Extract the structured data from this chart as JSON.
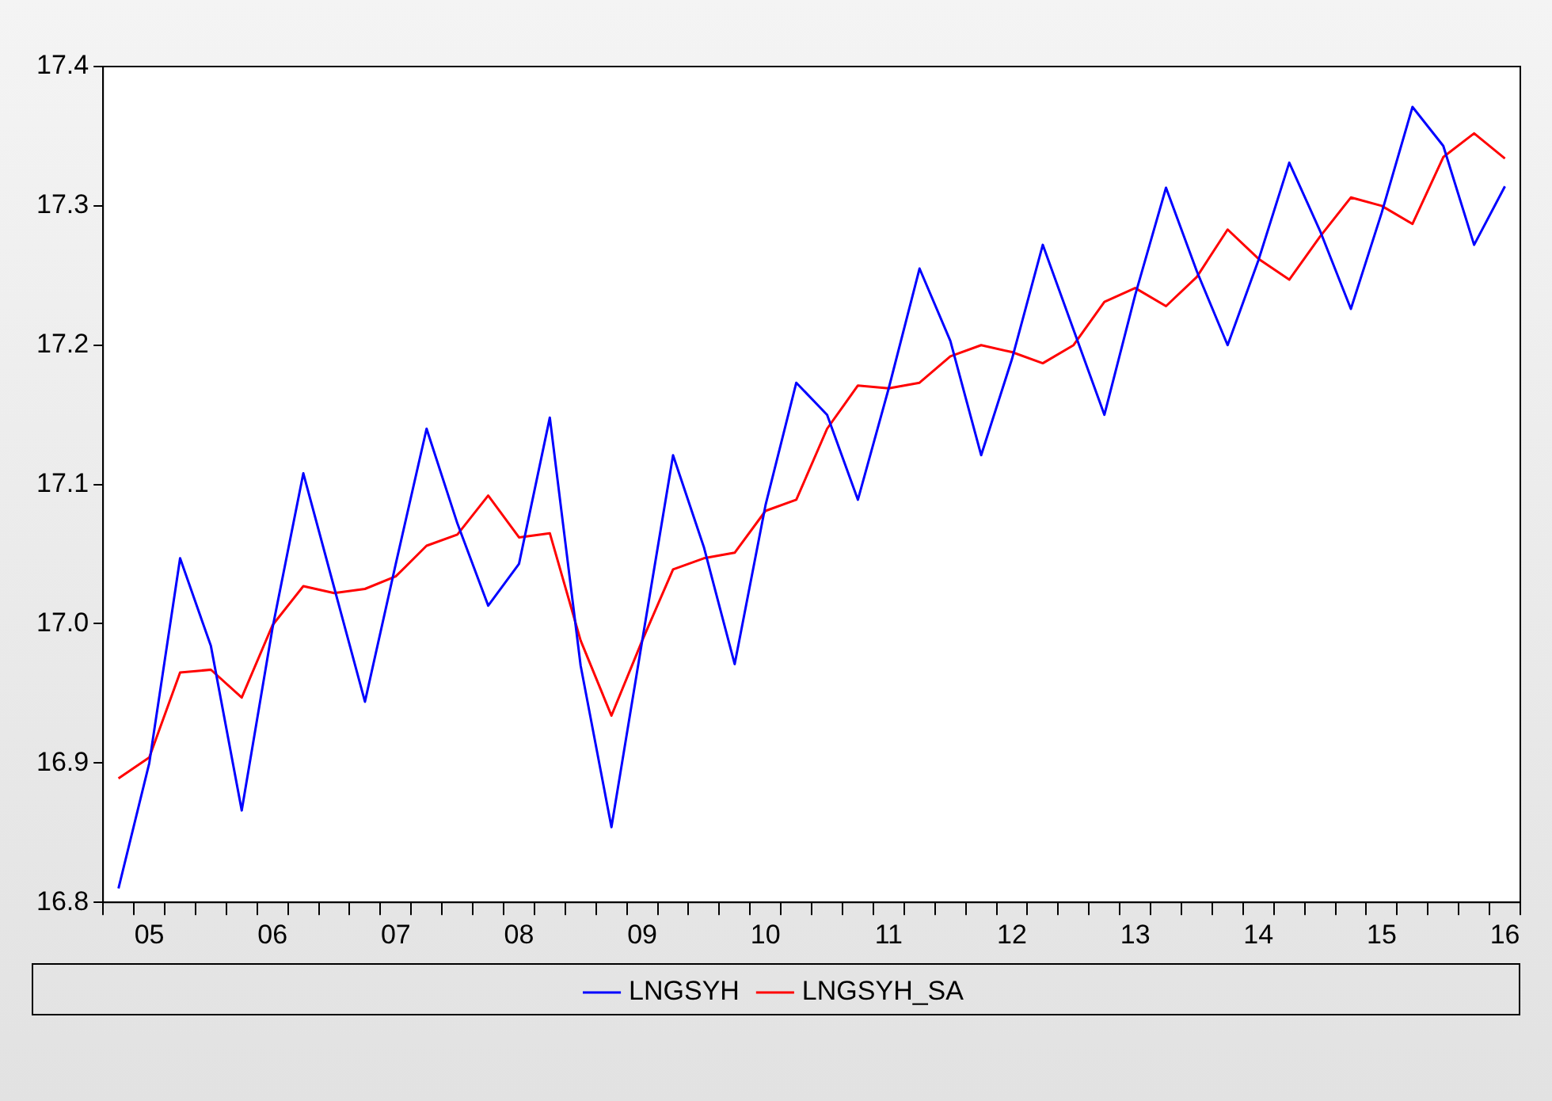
{
  "chart_data": {
    "type": "line",
    "categories": [
      null,
      "05",
      null,
      null,
      null,
      "06",
      null,
      null,
      null,
      "07",
      null,
      null,
      null,
      "08",
      null,
      null,
      null,
      "09",
      null,
      null,
      null,
      "10",
      null,
      null,
      null,
      "11",
      null,
      null,
      null,
      "12",
      null,
      null,
      null,
      "13",
      null,
      null,
      null,
      "14",
      null,
      null,
      null,
      "15",
      null,
      null,
      null,
      "16"
    ],
    "series": [
      {
        "name": "LNGSYH",
        "color": "#0000ff",
        "values": [
          16.81,
          16.9,
          17.047,
          16.984,
          16.866,
          16.997,
          17.108,
          17.026,
          16.944,
          17.043,
          17.14,
          17.072,
          17.013,
          17.043,
          17.148,
          16.97,
          16.854,
          16.988,
          17.121,
          17.055,
          16.971,
          17.085,
          17.173,
          17.15,
          17.089,
          17.169,
          17.255,
          17.203,
          17.121,
          17.19,
          17.272,
          17.211,
          17.15,
          17.236,
          17.313,
          17.253,
          17.2,
          17.261,
          17.331,
          17.282,
          17.226,
          17.295,
          17.371,
          17.343,
          17.272,
          17.314
        ]
      },
      {
        "name": "LNGSYH_SA",
        "color": "#ff0000",
        "values": [
          16.889,
          16.904,
          16.965,
          16.967,
          16.947,
          16.999,
          17.027,
          17.022,
          17.025,
          17.034,
          17.056,
          17.064,
          17.092,
          17.062,
          17.065,
          16.988,
          16.934,
          16.988,
          17.039,
          17.047,
          17.051,
          17.081,
          17.089,
          17.14,
          17.171,
          17.169,
          17.173,
          17.192,
          17.2,
          17.195,
          17.187,
          17.2,
          17.231,
          17.241,
          17.228,
          17.249,
          17.283,
          17.262,
          17.247,
          17.278,
          17.306,
          17.3,
          17.287,
          17.335,
          17.352,
          17.334
        ]
      }
    ],
    "ylim": [
      16.8,
      17.4
    ],
    "yticks": [
      16.8,
      16.9,
      {
        "value": 17,
        "label": "17.0"
      },
      17.1,
      17.2,
      17.3,
      17.4
    ],
    "grid": false,
    "legend": "bottom",
    "marker": "none",
    "line_style": "solid"
  }
}
